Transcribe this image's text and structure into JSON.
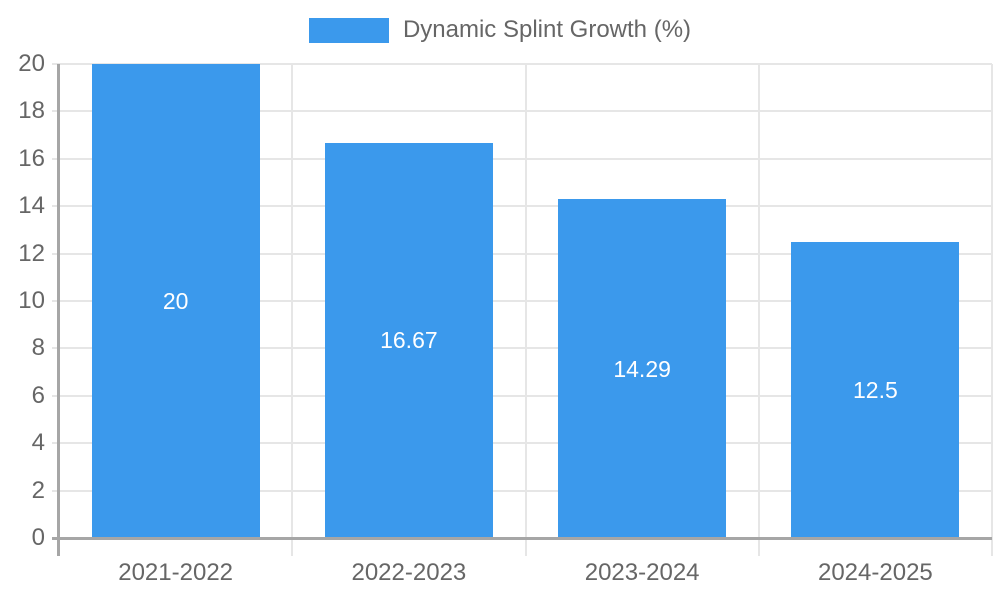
{
  "chart_data": {
    "type": "bar",
    "title": "",
    "legend_label": "Dynamic Splint Growth (%)",
    "legend_position": "top",
    "categories": [
      "2021-2022",
      "2022-2023",
      "2023-2024",
      "2024-2025"
    ],
    "values": [
      20,
      16.67,
      14.29,
      12.5
    ],
    "value_labels": [
      "20",
      "16.67",
      "14.29",
      "12.5"
    ],
    "xlabel": "",
    "ylabel": "",
    "ylim": [
      0,
      20
    ],
    "yticks": [
      0,
      2,
      4,
      6,
      8,
      10,
      12,
      14,
      16,
      18,
      20
    ],
    "grid": true,
    "colors": {
      "bar": "#3b99ec",
      "grid": "#e6e6e6",
      "axis": "#a6a6a6",
      "tick_label": "#666666",
      "legend_text": "#666666",
      "bar_label": "#ffffff",
      "background": "#ffffff"
    }
  }
}
